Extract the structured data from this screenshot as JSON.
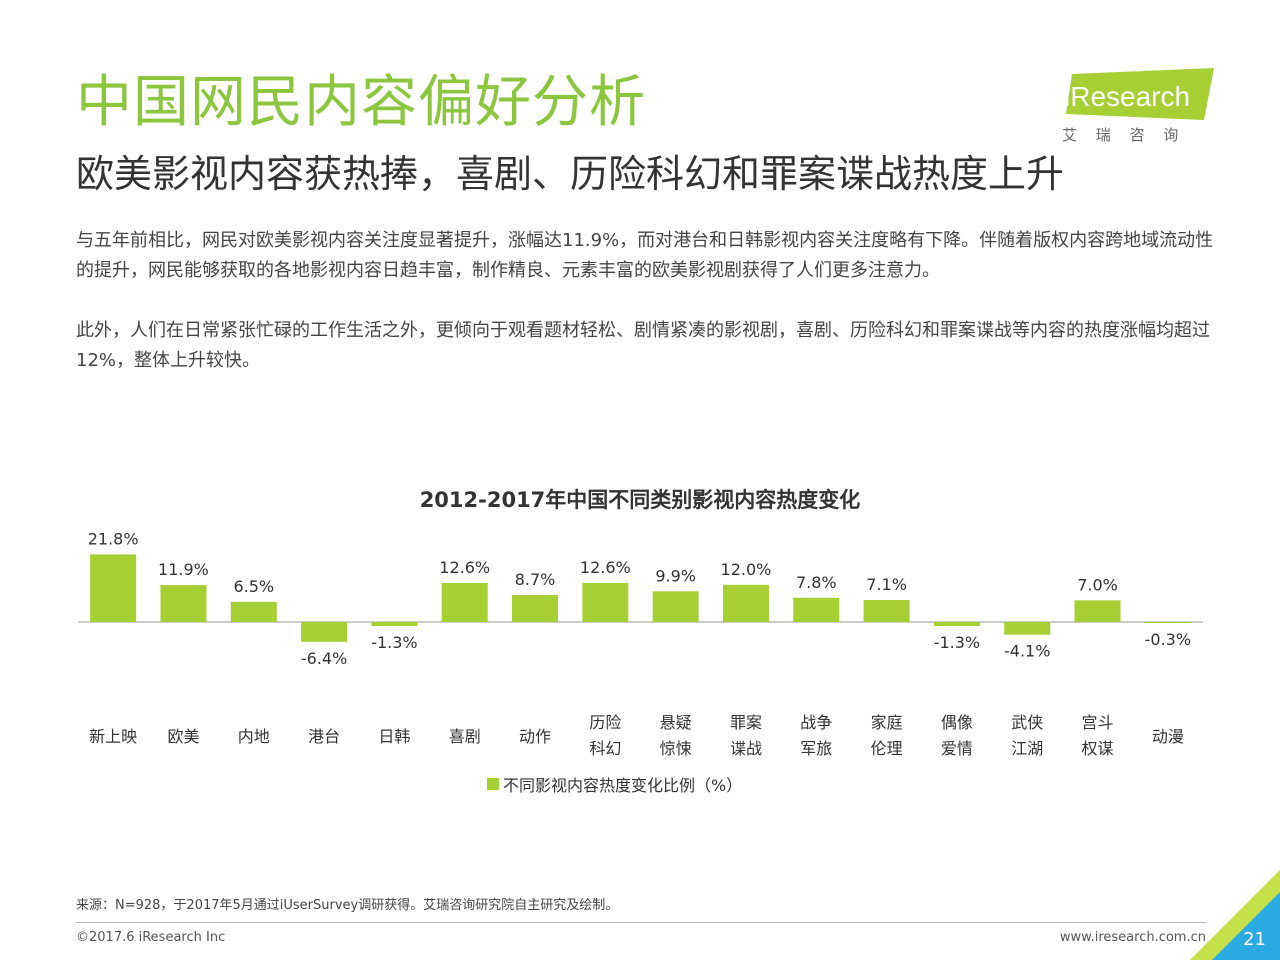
{
  "header": {
    "title": "中国网民内容偏好分析",
    "subtitle": "欧美影视内容获热捧，喜剧、历险科幻和罪案谍战热度上升"
  },
  "logo": {
    "brand": "iResearch",
    "sub": "艾 瑞 咨 询"
  },
  "body": {
    "p1": "与五年前相比，网民对欧美影视内容关注度显著提升，涨幅达11.9%，而对港台和日韩影视内容关注度略有下降。伴随着版权内容跨地域流动性的提升，网民能够获取的各地影视内容日趋丰富，制作精良、元素丰富的欧美影视剧获得了人们更多注意力。",
    "p2": "此外，人们在日常紧张忙碌的工作生活之外，更倾向于观看题材轻松、剧情紧凑的影视剧，喜剧、历险科幻和罪案谍战等内容的热度涨幅均超过12%，整体上升较快。"
  },
  "chart_data": {
    "type": "bar",
    "title": "2012-2017年中国不同类别影视内容热度变化",
    "categories": [
      [
        "新上映"
      ],
      [
        "欧美"
      ],
      [
        "内地"
      ],
      [
        "港台"
      ],
      [
        "日韩"
      ],
      [
        "喜剧"
      ],
      [
        "动作"
      ],
      [
        "历险",
        "科幻"
      ],
      [
        "悬疑",
        "惊悚"
      ],
      [
        "罪案",
        "谍战"
      ],
      [
        "战争",
        "军旅"
      ],
      [
        "家庭",
        "伦理"
      ],
      [
        "偶像",
        "爱情"
      ],
      [
        "武侠",
        "江湖"
      ],
      [
        "宫斗",
        "权谋"
      ],
      [
        "动漫"
      ]
    ],
    "series": [
      {
        "name": "不同影视内容热度变化比例（%）",
        "values": [
          21.8,
          11.9,
          6.5,
          -6.4,
          -1.3,
          12.6,
          8.7,
          12.6,
          9.9,
          12.0,
          7.8,
          7.1,
          -1.3,
          -4.1,
          7.0,
          -0.3
        ],
        "labels": [
          "21.8%",
          "11.9%",
          "6.5%",
          "-6.4%",
          "-1.3%",
          "12.6%",
          "8.7%",
          "12.6%",
          "9.9%",
          "12.0%",
          "7.8%",
          "7.1%",
          "-1.3%",
          "-4.1%",
          "7.0%",
          "-0.3%"
        ]
      }
    ],
    "bar_color": "#a5cf32",
    "legend_position": "bottom",
    "grid": false
  },
  "footer": {
    "source": "来源：N=928，于2017年5月通过iUserSurvey调研获得。艾瑞咨询研究院自主研究及绘制。",
    "copyright": "©2017.6 iResearch Inc",
    "website": "www.iresearch.com.cn",
    "page_number": "21"
  },
  "colors": {
    "title_green": "#8cc63f",
    "bar_green": "#a5cf32",
    "corner_blue": "#29abe2",
    "corner_green": "#c5e04a"
  }
}
